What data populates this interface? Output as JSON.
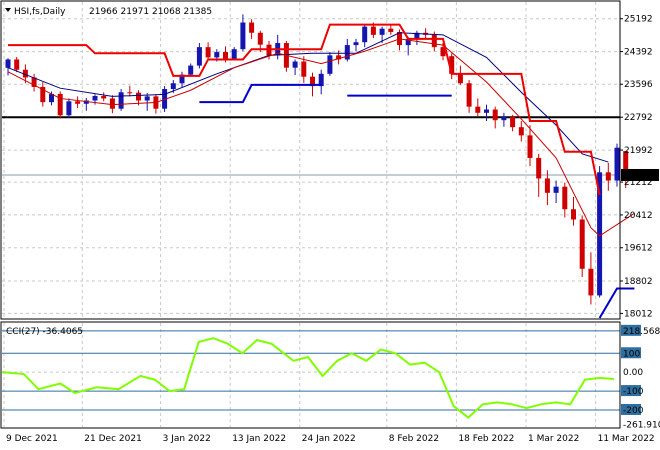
{
  "header": {
    "symbol": "HSI,fs,Daily",
    "ohlc": "21966 21971 21068 21385"
  },
  "indicator": {
    "label": "CCI(27) -36.4065"
  },
  "colors": {
    "bull": "#1515b0",
    "bear": "#d10000",
    "ma_fast": "#cc0000",
    "ma_slow": "#000080",
    "step_red": "#ee0000",
    "step_blue": "#0000cc",
    "cci": "#7fff00",
    "cci_level": "#2f6f9f",
    "level_line": "#000000",
    "grid": "#c8c8c8"
  },
  "chart_data": [
    {
      "type": "candlestick",
      "title": "HSI,fs,Daily",
      "ylim": [
        17900,
        25600
      ],
      "y_ticks": [
        "25192",
        "24392",
        "23596",
        "22792",
        "21992",
        "21212",
        "20412",
        "19612",
        "18802",
        "18012"
      ],
      "current_price_label": "21385",
      "current_price": 21385,
      "x_ticks": [
        "9 Dec 2021",
        "21 Dec 2021",
        "3 Jan 2022",
        "13 Jan 2022",
        "24 Jan 2022",
        "8 Feb 2022",
        "18 Feb 2022",
        "1 Mar 2022",
        "11 Mar 2022"
      ],
      "x_tick_index": [
        0,
        9,
        18,
        26,
        34,
        44,
        52,
        60,
        68
      ],
      "horizontal_level": 22792,
      "candles": [
        [
          23996,
          24230,
          23810,
          24200
        ],
        [
          24200,
          24260,
          23890,
          23950
        ],
        [
          23950,
          24080,
          23620,
          23760
        ],
        [
          23760,
          23850,
          23420,
          23530
        ],
        [
          23530,
          23650,
          23050,
          23160
        ],
        [
          23160,
          23420,
          23080,
          23360
        ],
        [
          23360,
          23420,
          22760,
          22840
        ],
        [
          22840,
          23250,
          22780,
          23180
        ],
        [
          23180,
          23300,
          23020,
          23120
        ],
        [
          23120,
          23260,
          22950,
          23200
        ],
        [
          23200,
          23350,
          23100,
          23310
        ],
        [
          23310,
          23400,
          23180,
          23250
        ],
        [
          23250,
          23330,
          22890,
          23000
        ],
        [
          23000,
          23480,
          22950,
          23400
        ],
        [
          23400,
          23560,
          23300,
          23390
        ],
        [
          23390,
          23450,
          23080,
          23200
        ],
        [
          23200,
          23380,
          22950,
          23300
        ],
        [
          23300,
          23350,
          22880,
          23000
        ],
        [
          23000,
          23550,
          22920,
          23480
        ],
        [
          23480,
          23700,
          23380,
          23620
        ],
        [
          23620,
          23900,
          23530,
          23830
        ],
        [
          23830,
          24100,
          23780,
          24050
        ],
        [
          24050,
          24600,
          23980,
          24500
        ],
        [
          24500,
          24620,
          24180,
          24250
        ],
        [
          24250,
          24450,
          24150,
          24380
        ],
        [
          24380,
          24520,
          24130,
          24220
        ],
        [
          24220,
          24500,
          24180,
          24450
        ],
        [
          24450,
          25300,
          24400,
          25100
        ],
        [
          25100,
          25180,
          24700,
          24850
        ],
        [
          24850,
          24900,
          24380,
          24560
        ],
        [
          24560,
          24650,
          24200,
          24300
        ],
        [
          24300,
          24800,
          24200,
          24600
        ],
        [
          24600,
          24650,
          23900,
          24000
        ],
        [
          24000,
          24200,
          23820,
          24150
        ],
        [
          24150,
          24280,
          23630,
          23780
        ],
        [
          23780,
          23880,
          23300,
          23550
        ],
        [
          23550,
          23950,
          23350,
          23850
        ],
        [
          23850,
          24380,
          23800,
          24300
        ],
        [
          24300,
          24420,
          24080,
          24200
        ],
        [
          24200,
          24700,
          24150,
          24550
        ],
        [
          24550,
          24700,
          24400,
          24620
        ],
        [
          24620,
          25050,
          24500,
          25000
        ],
        [
          25000,
          25100,
          24720,
          24800
        ],
        [
          24800,
          25000,
          24600,
          24950
        ],
        [
          24950,
          25050,
          24800,
          24870
        ],
        [
          24870,
          24930,
          24420,
          24550
        ],
        [
          24550,
          24750,
          24300,
          24700
        ],
        [
          24700,
          24900,
          24550,
          24850
        ],
        [
          24850,
          24960,
          24700,
          24800
        ],
        [
          24800,
          24880,
          24400,
          24500
        ],
        [
          24500,
          24600,
          24180,
          24280
        ],
        [
          24280,
          24350,
          23720,
          23850
        ],
        [
          23850,
          24050,
          23580,
          23620
        ],
        [
          23620,
          23700,
          22900,
          23050
        ],
        [
          23050,
          23250,
          22820,
          22900
        ],
        [
          22900,
          23100,
          22700,
          22980
        ],
        [
          22980,
          23050,
          22520,
          22720
        ],
        [
          22720,
          22900,
          22560,
          22800
        ],
        [
          22800,
          22850,
          22450,
          22550
        ],
        [
          22550,
          22700,
          22200,
          22350
        ],
        [
          22350,
          22600,
          21600,
          21800
        ],
        [
          21800,
          21900,
          20850,
          21300
        ],
        [
          21300,
          21500,
          20650,
          20950
        ],
        [
          20950,
          21250,
          20700,
          21100
        ],
        [
          21100,
          21200,
          20350,
          20550
        ],
        [
          20550,
          20850,
          20150,
          20300
        ],
        [
          20300,
          20400,
          18900,
          19100
        ],
        [
          19100,
          19500,
          18230,
          18450
        ],
        [
          18450,
          21600,
          18400,
          21450
        ],
        [
          21450,
          21680,
          21000,
          21250
        ],
        [
          21250,
          22150,
          21100,
          22050
        ],
        [
          21966,
          21971,
          21068,
          21385
        ]
      ],
      "ma_fast": [
        [
          0,
          23900
        ],
        [
          6,
          23250
        ],
        [
          12,
          23100
        ],
        [
          17,
          23150
        ],
        [
          21,
          23450
        ],
        [
          26,
          24000
        ],
        [
          31,
          24350
        ],
        [
          36,
          24100
        ],
        [
          41,
          24400
        ],
        [
          45,
          24700
        ],
        [
          50,
          24550
        ],
        [
          55,
          23650
        ],
        [
          59,
          22750
        ],
        [
          63,
          21800
        ],
        [
          67,
          20100
        ],
        [
          68,
          19900
        ],
        [
          72,
          20450
        ]
      ],
      "ma_slow": [
        [
          0,
          24000
        ],
        [
          6,
          23500
        ],
        [
          12,
          23300
        ],
        [
          18,
          23350
        ],
        [
          24,
          23850
        ],
        [
          30,
          24300
        ],
        [
          35,
          24350
        ],
        [
          40,
          24350
        ],
        [
          45,
          24850
        ],
        [
          50,
          24800
        ],
        [
          55,
          24250
        ],
        [
          59,
          23400
        ],
        [
          63,
          22600
        ],
        [
          66,
          21900
        ],
        [
          69,
          21700
        ]
      ],
      "step_red": [
        [
          0,
          24550
        ],
        [
          9,
          24550
        ],
        [
          10,
          24350
        ],
        [
          18,
          24350
        ],
        [
          19,
          23800
        ],
        [
          22,
          23800
        ],
        [
          23,
          24200
        ],
        [
          27,
          24200
        ],
        [
          28,
          24450
        ],
        [
          36,
          24450
        ],
        [
          37,
          25050
        ],
        [
          45,
          25050
        ],
        [
          46,
          24700
        ],
        [
          50,
          24700
        ],
        [
          51,
          23850
        ],
        [
          59,
          23850
        ],
        [
          60,
          22700
        ],
        [
          63,
          22700
        ],
        [
          64,
          21950
        ],
        [
          67,
          21950
        ],
        [
          68,
          20900
        ]
      ],
      "step_blue": [
        [
          22,
          23160
        ],
        [
          27,
          23160
        ],
        [
          28,
          23580
        ],
        [
          36,
          23580
        ],
        [
          39,
          23320
        ],
        [
          51,
          23320
        ],
        [
          68,
          17900
        ],
        [
          70,
          18620
        ],
        [
          72,
          18620
        ]
      ]
    },
    {
      "type": "line",
      "title": "CCI(27) -36.4065",
      "ylim": [
        -290,
        260
      ],
      "levels": [
        218.5687,
        100,
        0,
        -100,
        -200
      ],
      "y_ticks": [
        "218.5687",
        "100",
        "0.00",
        "-100",
        "-200",
        "-261.910"
      ],
      "last_value": -36.4065,
      "values": [
        [
          0,
          0
        ],
        [
          3,
          -10
        ],
        [
          5,
          -90
        ],
        [
          8,
          -60
        ],
        [
          10,
          -110
        ],
        [
          13,
          -80
        ],
        [
          16,
          -90
        ],
        [
          19,
          -20
        ],
        [
          21,
          -40
        ],
        [
          23,
          -100
        ],
        [
          25,
          -90
        ],
        [
          27,
          160
        ],
        [
          29,
          180
        ],
        [
          31,
          150
        ],
        [
          33,
          100
        ],
        [
          35,
          170
        ],
        [
          37,
          150
        ],
        [
          40,
          60
        ],
        [
          42,
          80
        ],
        [
          44,
          -20
        ],
        [
          46,
          60
        ],
        [
          48,
          100
        ],
        [
          50,
          60
        ],
        [
          52,
          120
        ],
        [
          54,
          100
        ],
        [
          56,
          40
        ],
        [
          58,
          50
        ],
        [
          60,
          0
        ],
        [
          62,
          -180
        ],
        [
          64,
          -240
        ],
        [
          66,
          -170
        ],
        [
          68,
          -160
        ],
        [
          70,
          -170
        ],
        [
          72,
          -190
        ],
        [
          74,
          -170
        ],
        [
          76,
          -160
        ],
        [
          78,
          -170
        ],
        [
          80,
          -40
        ],
        [
          82,
          -30
        ],
        [
          84,
          -36
        ]
      ]
    }
  ]
}
